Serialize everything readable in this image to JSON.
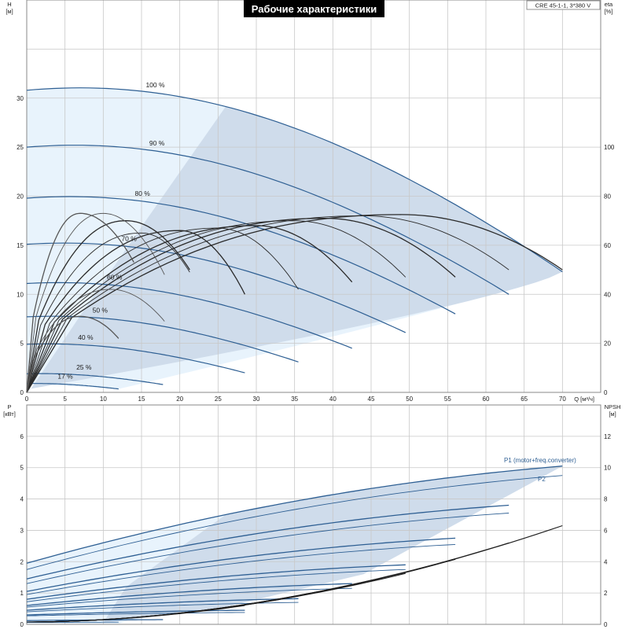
{
  "title": "Рабочие характеристики",
  "model_label": "CRE 45-1-1, 3*380 V",
  "colors": {
    "blue": "#2e5f93",
    "dark": "#1f1f1f",
    "light_fill": "#e8f3fc",
    "mid_fill": "#cfdceb",
    "grid": "#c8c8c8"
  },
  "chart_data": [
    {
      "type": "line",
      "name_id": "head-eta-chart",
      "x_axis": {
        "label": "Q [м³/ч]",
        "min": 0,
        "max": 75,
        "ticks": [
          0,
          5,
          10,
          15,
          20,
          25,
          30,
          35,
          40,
          45,
          50,
          55,
          60,
          65,
          70
        ]
      },
      "y_left": {
        "label_line1": "H",
        "label_line2": "[м]",
        "min": 0,
        "max": 40,
        "ticks": [
          0,
          5,
          10,
          15,
          20,
          25,
          30
        ]
      },
      "y_right": {
        "label_line1": "eta",
        "label_line2": "[%]",
        "min": 0,
        "max": 160,
        "ticks": [
          0,
          20,
          40,
          60,
          80,
          100
        ]
      },
      "grid": true,
      "head_curves": [
        {
          "speed": "100 %",
          "h0": 30.8,
          "qmax": 70,
          "hend": 12.3
        },
        {
          "speed": "90 %",
          "h0": 25.0,
          "qmax": 63,
          "hend": 10.0
        },
        {
          "speed": "80 %",
          "h0": 19.8,
          "qmax": 56,
          "hend": 8.0
        },
        {
          "speed": "70 %",
          "h0": 15.1,
          "qmax": 49.5,
          "hend": 6.1
        },
        {
          "speed": "60 %",
          "h0": 11.1,
          "qmax": 42.5,
          "hend": 4.5
        },
        {
          "speed": "50 %",
          "h0": 7.7,
          "qmax": 35.5,
          "hend": 3.1
        },
        {
          "speed": "40 %",
          "h0": 4.9,
          "qmax": 28.5,
          "hend": 2.0
        },
        {
          "speed": "25 %",
          "h0": 1.9,
          "qmax": 17.8,
          "hend": 0.8
        },
        {
          "speed": "17 %",
          "h0": 0.9,
          "qmax": 12,
          "hend": 0.35
        }
      ],
      "eta_curves": [
        {
          "qpeak": 49,
          "peak": 72.5,
          "qend": 70,
          "end": 50
        },
        {
          "qpeak": 44,
          "peak": 72,
          "qend": 63,
          "end": 50
        },
        {
          "qpeak": 39,
          "peak": 71,
          "qend": 56,
          "end": 47
        },
        {
          "qpeak": 35,
          "peak": 70,
          "qend": 49.5,
          "end": 47
        },
        {
          "qpeak": 30,
          "peak": 68,
          "qend": 42.5,
          "end": 45
        },
        {
          "qpeak": 25,
          "peak": 67,
          "qend": 35.5,
          "end": 42
        },
        {
          "qpeak": 20,
          "peak": 66,
          "qend": 28.5,
          "end": 40
        },
        {
          "qpeak": 15,
          "peak": 65,
          "qend": 21.3,
          "end": 49
        },
        {
          "qpeak": 13,
          "peak": 70,
          "qend": 21.3,
          "end": 50
        },
        {
          "qpeak": 10,
          "peak": 73,
          "qend": 18,
          "end": 48
        },
        {
          "qpeak": 7,
          "peak": 73,
          "qend": 14,
          "end": 53
        },
        {
          "qpeak": 11,
          "peak": 42,
          "qend": 18,
          "end": 29
        },
        {
          "qpeak": 7,
          "peak": 31,
          "qend": 12,
          "end": 22
        }
      ]
    },
    {
      "type": "line",
      "name_id": "power-npsh-chart",
      "x_axis": {
        "min": 0,
        "max": 75
      },
      "y_left": {
        "label_line1": "P",
        "label_line2": "[кВт]",
        "min": 0,
        "max": 7,
        "ticks": [
          0,
          1,
          2,
          3,
          4,
          5,
          6
        ]
      },
      "y_right": {
        "label_line1": "NPSH",
        "label_line2": "[м]",
        "min": 0,
        "max": 14,
        "ticks": [
          0,
          2,
          4,
          6,
          8,
          10,
          12
        ]
      },
      "grid": true,
      "series_labels": {
        "p1": "P1 (motor+freq.converter)",
        "p2": "P2"
      },
      "power_curves": [
        {
          "qmax": 70,
          "p0": 1.95,
          "pend": 5.05
        },
        {
          "qmax": 70,
          "p0": 1.75,
          "pend": 4.75
        },
        {
          "qmax": 63,
          "p0": 1.45,
          "pend": 3.8
        },
        {
          "qmax": 63,
          "p0": 1.3,
          "pend": 3.55
        },
        {
          "qmax": 56,
          "p0": 1.05,
          "pend": 2.75
        },
        {
          "qmax": 56,
          "p0": 0.95,
          "pend": 2.55
        },
        {
          "qmax": 49.5,
          "p0": 0.8,
          "pend": 1.9
        },
        {
          "qmax": 49.5,
          "p0": 0.72,
          "pend": 1.75
        },
        {
          "qmax": 42.5,
          "p0": 0.6,
          "pend": 1.3
        },
        {
          "qmax": 42.5,
          "p0": 0.55,
          "pend": 1.15
        },
        {
          "qmax": 35.5,
          "p0": 0.45,
          "pend": 0.82
        },
        {
          "qmax": 35.5,
          "p0": 0.4,
          "pend": 0.7
        },
        {
          "qmax": 28.5,
          "p0": 0.3,
          "pend": 0.45
        },
        {
          "qmax": 28.5,
          "p0": 0.27,
          "pend": 0.38
        },
        {
          "qmax": 17.8,
          "p0": 0.12,
          "pend": 0.15
        },
        {
          "qmax": 12,
          "p0": 0.06,
          "pend": 0.07
        }
      ],
      "npsh_curves": [
        {
          "qmax": 70,
          "end": 6.3
        },
        {
          "qmax": 63,
          "end": 5.2
        },
        {
          "qmax": 56,
          "end": 4.15
        },
        {
          "qmax": 49.5,
          "end": 3.25
        },
        {
          "qmax": 42.5,
          "end": 2.5
        },
        {
          "qmax": 35.5,
          "end": 1.8
        },
        {
          "qmax": 28.5,
          "end": 1.2
        }
      ]
    }
  ]
}
